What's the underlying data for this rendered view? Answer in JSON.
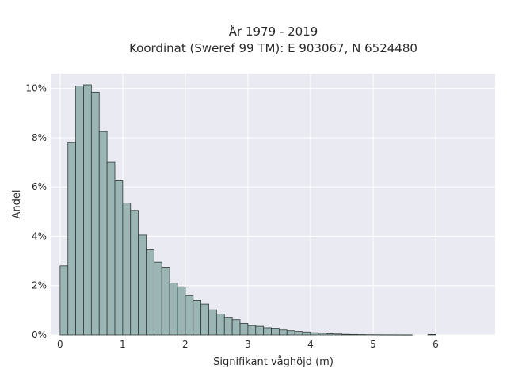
{
  "chart_data": {
    "type": "bar",
    "title": "År 1979 - 2019",
    "subtitle": "Koordinat (Sweref 99 TM): E 903067, N 6524480",
    "xlabel": "Signifikant våghöjd (m)",
    "ylabel": "Andel",
    "xlim": [
      -0.15,
      6.95
    ],
    "ylim": [
      0,
      10.6
    ],
    "x_ticks": [
      0,
      1,
      2,
      3,
      4,
      5,
      6
    ],
    "y_ticks": [
      0,
      2,
      4,
      6,
      8,
      10
    ],
    "y_tick_labels": [
      "0%",
      "2%",
      "4%",
      "6%",
      "8%",
      "10%"
    ],
    "grid": true,
    "bin_width": 0.125,
    "bin_starts": [
      0,
      0.125,
      0.25,
      0.375,
      0.5,
      0.625,
      0.75,
      0.875,
      1.0,
      1.125,
      1.25,
      1.375,
      1.5,
      1.625,
      1.75,
      1.875,
      2.0,
      2.125,
      2.25,
      2.375,
      2.5,
      2.625,
      2.75,
      2.875,
      3.0,
      3.125,
      3.25,
      3.375,
      3.5,
      3.625,
      3.75,
      3.875,
      4.0,
      4.125,
      4.25,
      4.375,
      4.5,
      4.625,
      4.75,
      4.875,
      5.0,
      5.125,
      5.25,
      5.375,
      5.5,
      5.625,
      5.75,
      5.875
    ],
    "values": [
      2.8,
      7.8,
      10.1,
      10.15,
      9.85,
      8.25,
      7.0,
      6.25,
      5.35,
      5.05,
      4.05,
      3.45,
      2.95,
      2.75,
      2.1,
      1.95,
      1.6,
      1.4,
      1.25,
      1.02,
      0.85,
      0.7,
      0.62,
      0.47,
      0.38,
      0.35,
      0.29,
      0.27,
      0.2,
      0.17,
      0.14,
      0.12,
      0.09,
      0.07,
      0.05,
      0.04,
      0.025,
      0.02,
      0.015,
      0.01,
      0.008,
      0.006,
      0.005,
      0.004,
      0.003,
      0.0,
      0.0,
      0.02
    ],
    "colors": {
      "plot_background": "#eaeaf2",
      "grid": "#ffffff",
      "bar_fill": "#9ab5b3",
      "bar_stroke": "#2f3a38"
    }
  }
}
